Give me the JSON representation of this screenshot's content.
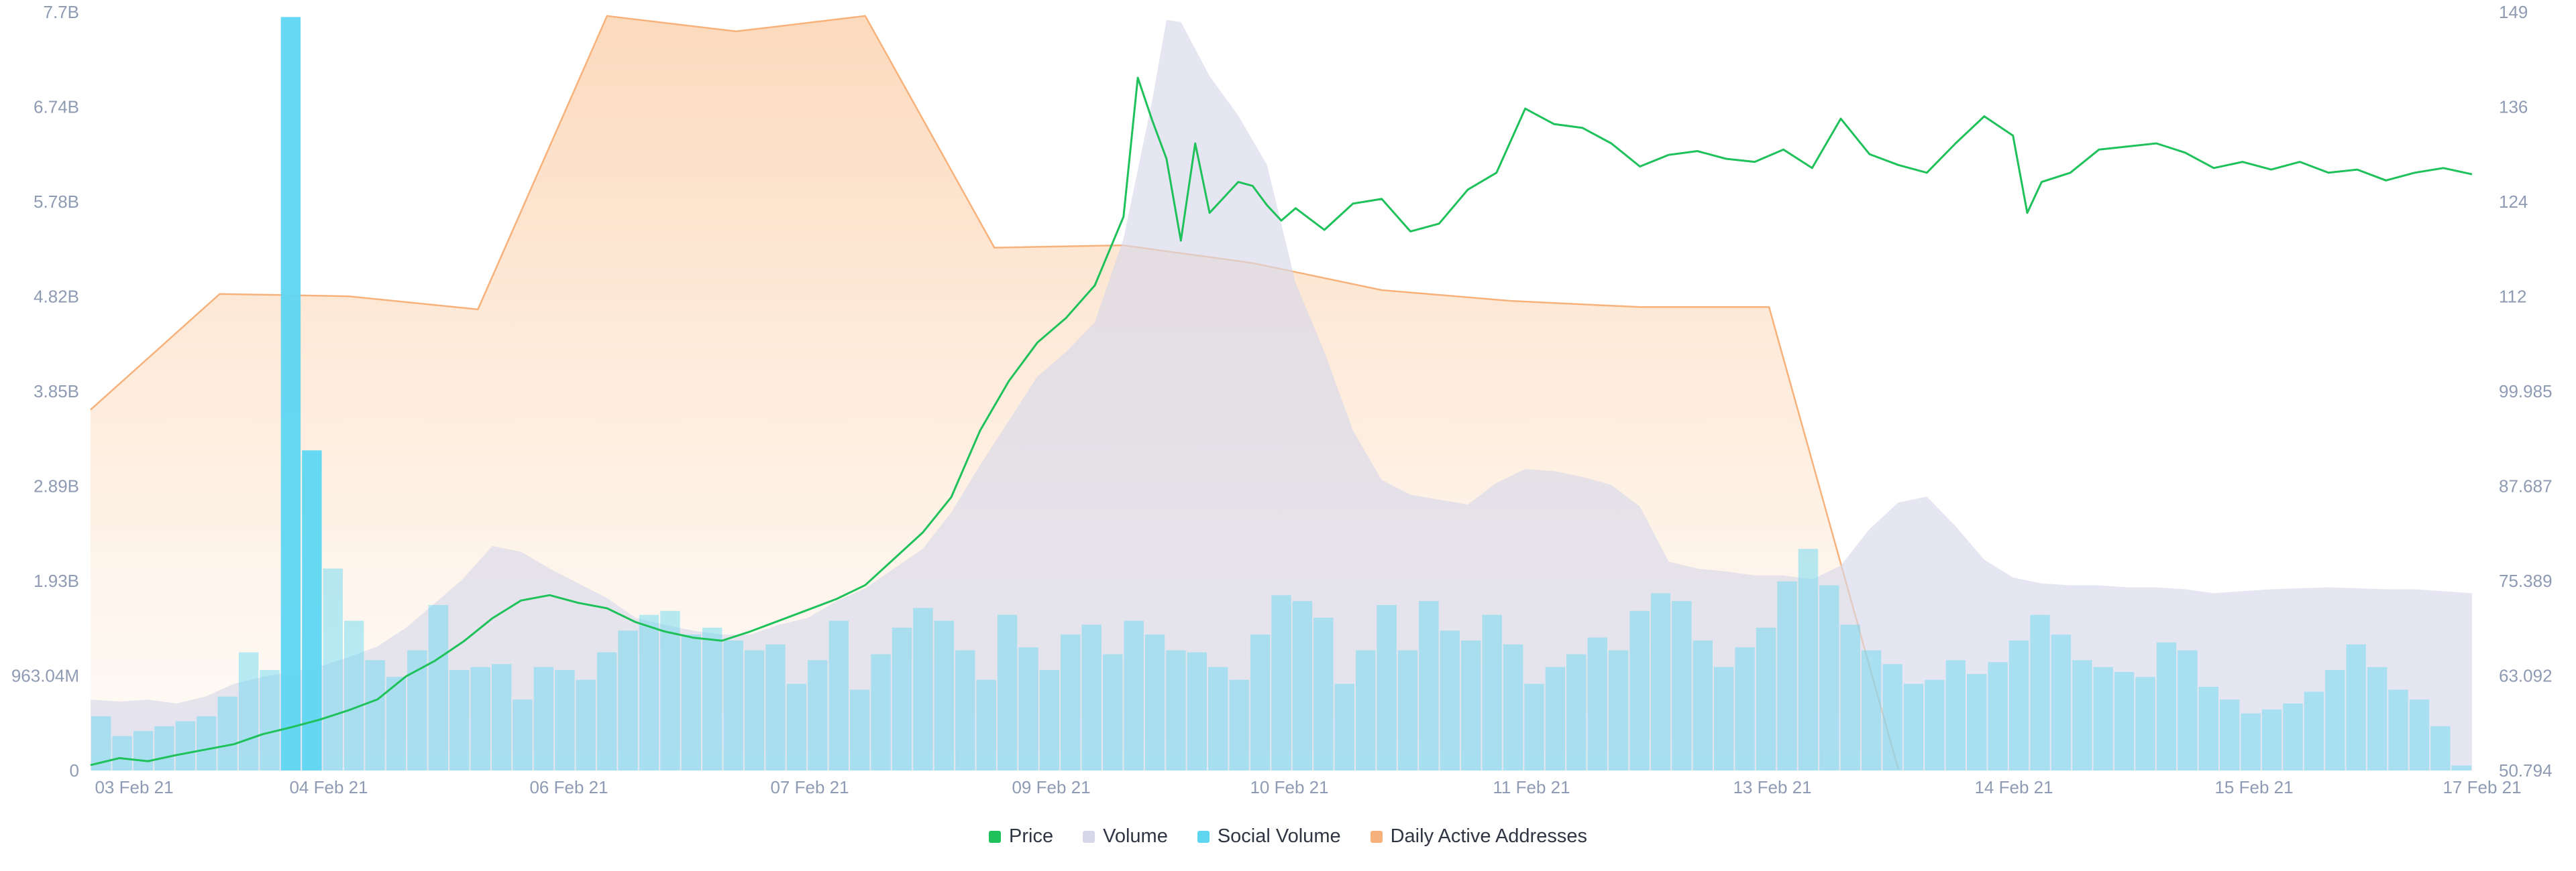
{
  "chart_data": {
    "type": "line",
    "x_labels": [
      "03 Feb 21",
      "04 Feb 21",
      "06 Feb 21",
      "07 Feb 21",
      "09 Feb 21",
      "10 Feb 21",
      "11 Feb 21",
      "13 Feb 21",
      "14 Feb 21",
      "15 Feb 21",
      "17 Feb 21"
    ],
    "left_axis": {
      "ticks": [
        "0",
        "963.04M",
        "1.93B",
        "2.89B",
        "3.85B",
        "4.82B",
        "5.78B",
        "6.74B",
        "7.7B"
      ],
      "min": 0,
      "max": 7.7,
      "unit": "B"
    },
    "right_axis": {
      "ticks": [
        "50.794",
        "63.092",
        "75.389",
        "87.687",
        "99.985",
        "112",
        "124",
        "136",
        "149"
      ],
      "min": 50.794,
      "max": 149
    },
    "grid": false,
    "legend_position": "bottom-center",
    "series": [
      {
        "name": "Price",
        "color": "#1fc15a",
        "axis": "right",
        "points": [
          [
            0,
            51.5
          ],
          [
            2,
            52.4
          ],
          [
            4,
            52.0
          ],
          [
            6,
            52.8
          ],
          [
            8,
            53.5
          ],
          [
            10,
            54.2
          ],
          [
            12,
            55.5
          ],
          [
            14,
            56.4
          ],
          [
            16,
            57.4
          ],
          [
            18,
            58.6
          ],
          [
            20,
            60.0
          ],
          [
            22,
            63.0
          ],
          [
            24,
            65.0
          ],
          [
            26,
            67.5
          ],
          [
            28,
            70.5
          ],
          [
            30,
            72.8
          ],
          [
            32,
            73.5
          ],
          [
            34,
            72.5
          ],
          [
            36,
            71.8
          ],
          [
            38,
            70.0
          ],
          [
            40,
            68.8
          ],
          [
            42,
            68.0
          ],
          [
            44,
            67.6
          ],
          [
            46,
            68.8
          ],
          [
            48,
            70.2
          ],
          [
            50,
            71.6
          ],
          [
            52,
            73.0
          ],
          [
            54,
            74.8
          ],
          [
            56,
            78.2
          ],
          [
            58,
            81.6
          ],
          [
            60,
            86.2
          ],
          [
            62,
            94.8
          ],
          [
            64,
            101.2
          ],
          [
            66,
            106.2
          ],
          [
            68,
            109.4
          ],
          [
            70,
            113.6
          ],
          [
            72,
            122.5
          ],
          [
            73,
            140.5
          ],
          [
            74,
            135.0
          ],
          [
            75,
            130.0
          ],
          [
            76,
            119.4
          ],
          [
            77,
            132.0
          ],
          [
            78,
            123.0
          ],
          [
            79,
            125.0
          ],
          [
            80,
            127.0
          ],
          [
            81,
            126.5
          ],
          [
            82,
            124.0
          ],
          [
            83,
            122.0
          ],
          [
            84,
            123.6
          ],
          [
            86,
            120.8
          ],
          [
            88,
            124.2
          ],
          [
            90,
            124.8
          ],
          [
            92,
            120.6
          ],
          [
            94,
            121.6
          ],
          [
            96,
            126.0
          ],
          [
            98,
            128.2
          ],
          [
            100,
            136.5
          ],
          [
            102,
            134.5
          ],
          [
            104,
            134.0
          ],
          [
            106,
            132.0
          ],
          [
            108,
            129.0
          ],
          [
            110,
            130.5
          ],
          [
            112,
            131.0
          ],
          [
            114,
            130.0
          ],
          [
            116,
            129.6
          ],
          [
            118,
            131.2
          ],
          [
            120,
            128.8
          ],
          [
            122,
            135.2
          ],
          [
            124,
            130.6
          ],
          [
            126,
            129.2
          ],
          [
            128,
            128.2
          ],
          [
            130,
            132.0
          ],
          [
            132,
            135.5
          ],
          [
            134,
            133.0
          ],
          [
            135,
            123.0
          ],
          [
            136,
            127.0
          ],
          [
            138,
            128.2
          ],
          [
            140,
            131.2
          ],
          [
            142,
            131.6
          ],
          [
            144,
            132.0
          ],
          [
            146,
            130.8
          ],
          [
            148,
            128.8
          ],
          [
            150,
            129.6
          ],
          [
            152,
            128.6
          ],
          [
            154,
            129.6
          ],
          [
            156,
            128.2
          ],
          [
            158,
            128.6
          ],
          [
            160,
            127.2
          ],
          [
            162,
            128.2
          ],
          [
            164,
            128.8
          ],
          [
            166,
            128.0
          ]
        ]
      },
      {
        "name": "Volume",
        "color": "#d7d9ea",
        "axis": "left",
        "points": [
          [
            0,
            0.72
          ],
          [
            2,
            0.7
          ],
          [
            4,
            0.72
          ],
          [
            6,
            0.68
          ],
          [
            8,
            0.75
          ],
          [
            10,
            0.88
          ],
          [
            12,
            0.95
          ],
          [
            14,
            1.0
          ],
          [
            16,
            1.06
          ],
          [
            18,
            1.15
          ],
          [
            20,
            1.26
          ],
          [
            22,
            1.45
          ],
          [
            24,
            1.7
          ],
          [
            26,
            1.95
          ],
          [
            28,
            2.28
          ],
          [
            30,
            2.22
          ],
          [
            32,
            2.05
          ],
          [
            34,
            1.9
          ],
          [
            36,
            1.75
          ],
          [
            38,
            1.55
          ],
          [
            40,
            1.48
          ],
          [
            42,
            1.42
          ],
          [
            44,
            1.38
          ],
          [
            46,
            1.38
          ],
          [
            48,
            1.48
          ],
          [
            50,
            1.55
          ],
          [
            52,
            1.72
          ],
          [
            54,
            1.85
          ],
          [
            56,
            2.05
          ],
          [
            58,
            2.25
          ],
          [
            60,
            2.62
          ],
          [
            62,
            3.1
          ],
          [
            64,
            3.55
          ],
          [
            66,
            4.0
          ],
          [
            68,
            4.25
          ],
          [
            70,
            4.55
          ],
          [
            72,
            5.4
          ],
          [
            74,
            6.8
          ],
          [
            75,
            7.62
          ],
          [
            76,
            7.6
          ],
          [
            78,
            7.05
          ],
          [
            80,
            6.65
          ],
          [
            82,
            6.15
          ],
          [
            84,
            4.95
          ],
          [
            86,
            4.25
          ],
          [
            88,
            3.45
          ],
          [
            90,
            2.95
          ],
          [
            92,
            2.8
          ],
          [
            94,
            2.75
          ],
          [
            96,
            2.7
          ],
          [
            98,
            2.92
          ],
          [
            100,
            3.06
          ],
          [
            102,
            3.04
          ],
          [
            104,
            2.98
          ],
          [
            106,
            2.9
          ],
          [
            108,
            2.68
          ],
          [
            110,
            2.12
          ],
          [
            112,
            2.05
          ],
          [
            114,
            2.02
          ],
          [
            116,
            1.98
          ],
          [
            118,
            1.98
          ],
          [
            120,
            1.94
          ],
          [
            122,
            2.08
          ],
          [
            124,
            2.45
          ],
          [
            126,
            2.72
          ],
          [
            128,
            2.78
          ],
          [
            130,
            2.48
          ],
          [
            132,
            2.14
          ],
          [
            134,
            1.96
          ],
          [
            136,
            1.9
          ],
          [
            138,
            1.88
          ],
          [
            140,
            1.88
          ],
          [
            142,
            1.86
          ],
          [
            144,
            1.86
          ],
          [
            146,
            1.84
          ],
          [
            148,
            1.8
          ],
          [
            150,
            1.82
          ],
          [
            152,
            1.84
          ],
          [
            154,
            1.85
          ],
          [
            156,
            1.86
          ],
          [
            158,
            1.85
          ],
          [
            160,
            1.84
          ],
          [
            162,
            1.84
          ],
          [
            164,
            1.82
          ],
          [
            166,
            1.8
          ]
        ]
      },
      {
        "name": "Social Volume",
        "color": "#5ed6f2",
        "axis": "left",
        "bars": [
          0.55,
          0.35,
          0.4,
          0.45,
          0.5,
          0.55,
          0.75,
          1.2,
          1.02,
          7.65,
          3.25,
          2.05,
          1.52,
          1.12,
          0.95,
          1.22,
          1.68,
          1.02,
          1.05,
          1.08,
          0.72,
          1.05,
          1.02,
          0.92,
          1.2,
          1.42,
          1.58,
          1.62,
          1.38,
          1.45,
          1.32,
          1.22,
          1.28,
          0.88,
          1.12,
          1.52,
          0.82,
          1.18,
          1.45,
          1.65,
          1.52,
          1.22,
          0.92,
          1.58,
          1.25,
          1.02,
          1.38,
          1.48,
          1.18,
          1.52,
          1.38,
          1.22,
          1.2,
          1.05,
          0.92,
          1.38,
          1.78,
          1.72,
          1.55,
          0.88,
          1.22,
          1.68,
          1.22,
          1.72,
          1.42,
          1.32,
          1.58,
          1.28,
          0.88,
          1.05,
          1.18,
          1.35,
          1.22,
          1.62,
          1.8,
          1.72,
          1.32,
          1.05,
          1.25,
          1.45,
          1.92,
          2.25,
          1.88,
          1.48,
          1.22,
          1.08,
          0.88,
          0.92,
          1.12,
          0.98,
          1.1,
          1.32,
          1.58,
          1.38,
          1.12,
          1.05,
          1.0,
          0.95,
          1.3,
          1.22,
          0.85,
          0.72,
          0.58,
          0.62,
          0.68,
          0.8,
          1.02,
          1.28,
          1.05,
          0.82,
          0.72,
          0.45,
          0.05
        ],
        "bar_overrides": {
          "9": 7.65,
          "10": 3.25
        }
      },
      {
        "name": "Daily Active Addresses",
        "color": "#f7b27b",
        "axis": "right",
        "points": [
          [
            0,
            97.5
          ],
          [
            9,
            112.5
          ],
          [
            18,
            112.2
          ],
          [
            27,
            110.5
          ],
          [
            36,
            148.5
          ],
          [
            45,
            146.5
          ],
          [
            54,
            148.5
          ],
          [
            63,
            118.5
          ],
          [
            72,
            118.8
          ],
          [
            81,
            116.5
          ],
          [
            90,
            113.0
          ],
          [
            99,
            111.6
          ],
          [
            108,
            110.8
          ],
          [
            117,
            110.8
          ],
          [
            126,
            51.0
          ]
        ]
      }
    ]
  },
  "legend": [
    {
      "label": "Price",
      "color": "#1fc15a"
    },
    {
      "label": "Volume",
      "color": "#d7d9ea"
    },
    {
      "label": "Social Volume",
      "color": "#5ed6f2"
    },
    {
      "label": "Daily Active Addresses",
      "color": "#f7b27b"
    }
  ]
}
